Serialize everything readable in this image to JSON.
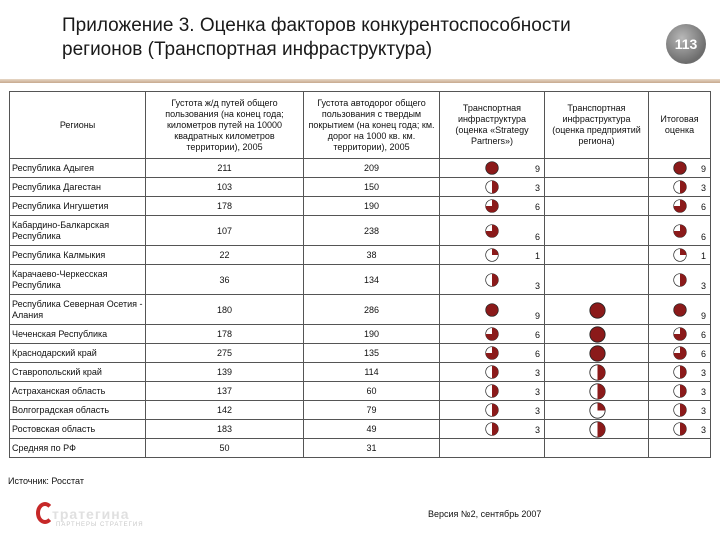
{
  "title": "Приложение 3. Оценка факторов конкурентоспособности регионов (Транспортная инфраструктура)",
  "page_number": "113",
  "colors": {
    "fill": "#8b1a1a",
    "ring": "#222222",
    "empty": "#ffffff"
  },
  "table": {
    "headers": [
      "Регионы",
      "Густота ж/д путей общего пользования (на конец года; километров путей на 10000 квадратных километров территории), 2005",
      "Густота автодорог общего пользования с твердым покрытием (на конец года; км. дорог на 1000 кв. км. территории), 2005",
      "Транспортная инфраструктура (оценка «Strategy Partners»)",
      "Транспортная инфраструктура (оценка предприятий региона)",
      "Итоговая оценка"
    ],
    "rows": [
      {
        "region": "Республика Адыгея",
        "rail": "211",
        "road": "209",
        "sp_score": "9",
        "sp_fill": 1.0,
        "ent_score": "",
        "ent_fill": null,
        "total_score": "9",
        "total_fill": 1.0
      },
      {
        "region": "Республика Дагестан",
        "rail": "103",
        "road": "150",
        "sp_score": "3",
        "sp_fill": 0.5,
        "ent_score": "",
        "ent_fill": null,
        "total_score": "3",
        "total_fill": 0.5
      },
      {
        "region": "Республика Ингушетия",
        "rail": "178",
        "road": "190",
        "sp_score": "6",
        "sp_fill": 0.75,
        "ent_score": "",
        "ent_fill": null,
        "total_score": "6",
        "total_fill": 0.75
      },
      {
        "region": "Кабардино-Балкарская Республика",
        "rail": "107",
        "road": "238",
        "sp_score": "6",
        "sp_fill": 0.75,
        "ent_score": "",
        "ent_fill": null,
        "total_score": "6",
        "total_fill": 0.75
      },
      {
        "region": "Республика Калмыкия",
        "rail": "22",
        "road": "38",
        "sp_score": "1",
        "sp_fill": 0.25,
        "ent_score": "",
        "ent_fill": null,
        "total_score": "1",
        "total_fill": 0.25
      },
      {
        "region": "Карачаево-Черкесская Республика",
        "rail": "36",
        "road": "134",
        "sp_score": "3",
        "sp_fill": 0.5,
        "ent_score": "",
        "ent_fill": null,
        "total_score": "3",
        "total_fill": 0.5
      },
      {
        "region": "Республика Северная Осетия - Алания",
        "rail": "180",
        "road": "286",
        "sp_score": "9",
        "sp_fill": 1.0,
        "ent_score": "",
        "ent_fill": 1.0,
        "total_score": "9",
        "total_fill": 1.0
      },
      {
        "region": "Чеченская Республика",
        "rail": "178",
        "road": "190",
        "sp_score": "6",
        "sp_fill": 0.75,
        "ent_score": "",
        "ent_fill": 1.0,
        "total_score": "6",
        "total_fill": 0.75
      },
      {
        "region": "Краснодарский край",
        "rail": "275",
        "road": "135",
        "sp_score": "6",
        "sp_fill": 0.75,
        "ent_score": "",
        "ent_fill": 1.0,
        "total_score": "6",
        "total_fill": 0.75
      },
      {
        "region": "Ставропольский край",
        "rail": "139",
        "road": "114",
        "sp_score": "3",
        "sp_fill": 0.5,
        "ent_score": "",
        "ent_fill": 0.5,
        "total_score": "3",
        "total_fill": 0.5
      },
      {
        "region": "Астраханская область",
        "rail": "137",
        "road": "60",
        "sp_score": "3",
        "sp_fill": 0.5,
        "ent_score": "",
        "ent_fill": 0.5,
        "total_score": "3",
        "total_fill": 0.5
      },
      {
        "region": "Волгоградская область",
        "rail": "142",
        "road": "79",
        "sp_score": "3",
        "sp_fill": 0.5,
        "ent_score": "",
        "ent_fill": 0.25,
        "total_score": "3",
        "total_fill": 0.5
      },
      {
        "region": "Ростовская область",
        "rail": "183",
        "road": "49",
        "sp_score": "3",
        "sp_fill": 0.5,
        "ent_score": "",
        "ent_fill": 0.5,
        "total_score": "3",
        "total_fill": 0.5
      },
      {
        "region": "Средняя по РФ",
        "rail": "50",
        "road": "31",
        "sp_score": "",
        "sp_fill": null,
        "ent_score": "",
        "ent_fill": null,
        "total_score": "",
        "total_fill": null
      }
    ]
  },
  "footer": {
    "source": "Источник: Росстат",
    "version": "Версия №2, сентябрь 2007",
    "logo_text": "тратегина",
    "logo_sub": "ПАРТНЕРЫ СТРАТЕГИЯ"
  }
}
